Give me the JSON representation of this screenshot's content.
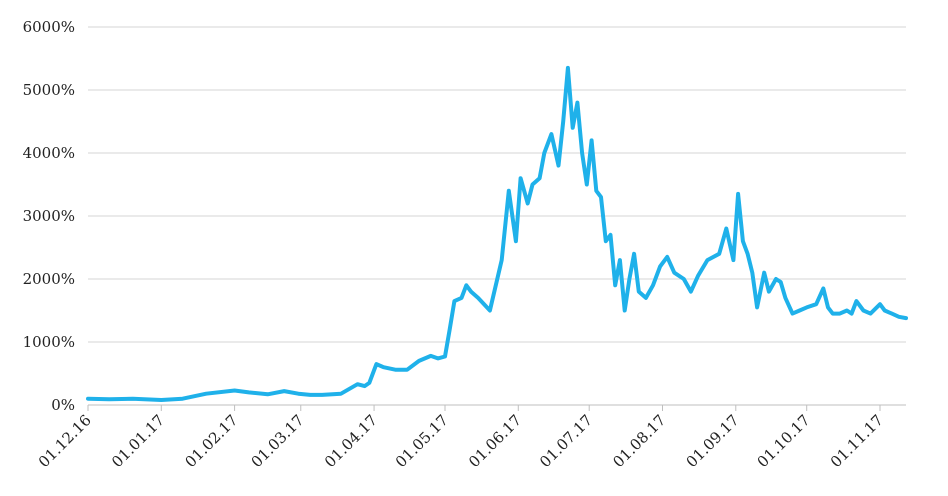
{
  "chart_data": {
    "type": "line",
    "title": "",
    "xlabel": "",
    "ylabel": "",
    "ylim": [
      0,
      6000
    ],
    "y_ticks": [
      "0%",
      "1000%",
      "2000%",
      "3000%",
      "4000%",
      "5000%",
      "6000%"
    ],
    "x_ticks": [
      "01.12.16",
      "01.01.17",
      "01.02.17",
      "01.03.17",
      "01.04.17",
      "01.05.17",
      "01.06.17",
      "01.07.17",
      "01.08.17",
      "01.09.17",
      "01.10.17",
      "01.11.17"
    ],
    "grid": "horizontal",
    "legend": "none",
    "line_color": "#1fb1ea",
    "series": [
      {
        "x": [
          "2016-12-01",
          "2016-12-10",
          "2016-12-20",
          "2017-01-01",
          "2017-01-10",
          "2017-01-20",
          "2017-02-01",
          "2017-02-07",
          "2017-02-15",
          "2017-02-22",
          "2017-02-28",
          "2017-03-05",
          "2017-03-10",
          "2017-03-18",
          "2017-03-25",
          "2017-03-28",
          "2017-03-30",
          "2017-04-02",
          "2017-04-05",
          "2017-04-10",
          "2017-04-15",
          "2017-04-20",
          "2017-04-25",
          "2017-04-28",
          "2017-05-01",
          "2017-05-03",
          "2017-05-05",
          "2017-05-08",
          "2017-05-10",
          "2017-05-12",
          "2017-05-15",
          "2017-05-20",
          "2017-05-25",
          "2017-05-28",
          "2017-05-31",
          "2017-06-02",
          "2017-06-05",
          "2017-06-07",
          "2017-06-10",
          "2017-06-12",
          "2017-06-15",
          "2017-06-18",
          "2017-06-20",
          "2017-06-22",
          "2017-06-24",
          "2017-06-26",
          "2017-06-28",
          "2017-06-30",
          "2017-07-02",
          "2017-07-04",
          "2017-07-06",
          "2017-07-08",
          "2017-07-10",
          "2017-07-12",
          "2017-07-14",
          "2017-07-16",
          "2017-07-18",
          "2017-07-20",
          "2017-07-22",
          "2017-07-25",
          "2017-07-28",
          "2017-07-31",
          "2017-08-03",
          "2017-08-06",
          "2017-08-10",
          "2017-08-13",
          "2017-08-16",
          "2017-08-20",
          "2017-08-25",
          "2017-08-28",
          "2017-08-31",
          "2017-09-02",
          "2017-09-04",
          "2017-09-06",
          "2017-09-08",
          "2017-09-10",
          "2017-09-13",
          "2017-09-15",
          "2017-09-18",
          "2017-09-20",
          "2017-09-22",
          "2017-09-25",
          "2017-09-28",
          "2017-10-01",
          "2017-10-05",
          "2017-10-08",
          "2017-10-10",
          "2017-10-12",
          "2017-10-15",
          "2017-10-18",
          "2017-10-20",
          "2017-10-22",
          "2017-10-25",
          "2017-10-28",
          "2017-11-01",
          "2017-11-03",
          "2017-11-06",
          "2017-11-09",
          "2017-11-12"
        ],
        "values": [
          100,
          90,
          100,
          80,
          100,
          180,
          230,
          200,
          170,
          220,
          180,
          160,
          160,
          180,
          330,
          300,
          350,
          650,
          600,
          560,
          560,
          700,
          780,
          740,
          770,
          1200,
          1650,
          1700,
          1900,
          1800,
          1700,
          1500,
          2300,
          3400,
          2600,
          3600,
          3200,
          3500,
          3600,
          4000,
          4300,
          3800,
          4500,
          5350,
          4400,
          4800,
          4000,
          3500,
          4200,
          3400,
          3300,
          2600,
          2700,
          1900,
          2300,
          1500,
          2000,
          2400,
          1800,
          1700,
          1900,
          2200,
          2350,
          2100,
          2000,
          1800,
          2050,
          2300,
          2400,
          2800,
          2300,
          3350,
          2600,
          2400,
          2100,
          1550,
          2100,
          1800,
          2000,
          1950,
          1700,
          1450,
          1500,
          1550,
          1600,
          1850,
          1550,
          1450,
          1450,
          1500,
          1450,
          1650,
          1500,
          1450,
          1600,
          1500,
          1450,
          1400,
          1380
        ]
      }
    ]
  }
}
